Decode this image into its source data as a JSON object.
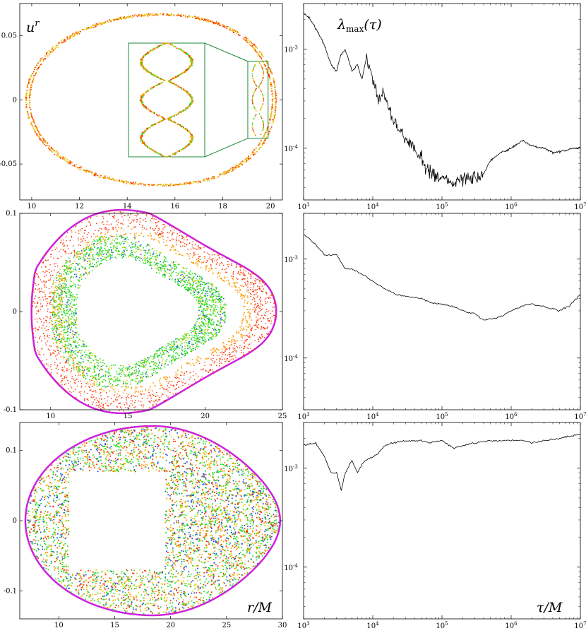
{
  "figure": {
    "ur_label": "u^r",
    "lambda_label": "λmax(τ)",
    "rm_label": "r/M",
    "taum_label": "τ/M"
  },
  "chart_data": [
    {
      "type": "scatter",
      "title": "",
      "xlabel": "",
      "ylabel": "u^r",
      "xlim": [
        9.5,
        20.5
      ],
      "ylim": [
        -0.078,
        0.075
      ],
      "xticks": [
        "10",
        "12",
        "14",
        "16",
        "18",
        "20"
      ],
      "yticks": [
        "0.05",
        "0",
        "-0.05"
      ],
      "inset": {
        "xlim": [
          19.05,
          19.9
        ],
        "ylim": [
          -0.03,
          0.03
        ]
      },
      "series": [
        {
          "color": "#ff3300",
          "x": [
            10.0,
            12.0,
            14.0,
            16.0,
            18.0,
            19.4,
            20.0
          ],
          "y": [
            0.0,
            0.063,
            0.068,
            0.068,
            0.061,
            0.0,
            -0.03
          ]
        },
        {
          "color": "#ffaa00",
          "x": [
            10.2,
            12.0,
            14.0,
            16.0,
            18.0,
            19.3
          ],
          "y": [
            0.0,
            0.061,
            0.066,
            0.066,
            0.059,
            0.0
          ]
        }
      ]
    },
    {
      "type": "line",
      "title": "",
      "xlabel": "",
      "ylabel": "λmax(τ)",
      "xscale": "log",
      "yscale": "log",
      "xlim": [
        1000,
        10000000
      ],
      "ylim": [
        3e-05,
        0.0029
      ],
      "xticks": [
        "10^3",
        "10^4",
        "10^5",
        "10^6",
        "10^7"
      ],
      "yticks": [
        "10^-3",
        "10^-4"
      ],
      "x": [
        1000,
        1200,
        1600,
        2000,
        2500,
        3000,
        3500,
        4000,
        5000,
        6000,
        7000,
        8000,
        10000,
        12000,
        14000,
        17000,
        20000,
        25000,
        30000,
        40000,
        50000,
        60000,
        80000,
        100000,
        150000,
        200000,
        300000,
        400000,
        500000,
        700000,
        1000000,
        1200000,
        1500000,
        2000000,
        3000000,
        4000000,
        6000000,
        8000000,
        10000000
      ],
      "y": [
        0.0023,
        0.0021,
        0.0015,
        0.0011,
        0.0007,
        0.0006,
        0.0009,
        0.001,
        0.0006,
        0.0007,
        0.0005,
        0.0008,
        0.0005,
        0.0003,
        0.0004,
        0.00025,
        0.0002,
        0.00015,
        0.00012,
        0.0001,
        8e-05,
        6e-05,
        5.5e-05,
        5e-05,
        4.5e-05,
        5e-05,
        5e-05,
        5.5e-05,
        7.5e-05,
        9e-05,
        0.0001,
        0.00011,
        0.00012,
        0.000105,
        0.0001,
        9e-05,
        9.5e-05,
        0.0001,
        0.0001
      ]
    },
    {
      "type": "scatter",
      "title": "",
      "xlabel": "",
      "ylabel": "",
      "xlim": [
        8,
        25
      ],
      "ylim": [
        -0.1,
        0.1
      ],
      "xticks": [
        "10",
        "15",
        "20",
        "25"
      ],
      "yticks": [
        "0.1",
        "0",
        "-0.1"
      ],
      "series": [
        {
          "color": "#cc22dd",
          "x": [
            9.0,
            10.0,
            14.0,
            18.0,
            20.0,
            22.0,
            25.0
          ],
          "y": [
            0.0,
            0.093,
            0.102,
            0.09,
            0.06,
            0.057,
            0.0
          ]
        },
        {
          "color": "#ff3300",
          "x": [
            8.5,
            10.0,
            15.0,
            20.0,
            23.0,
            24.5
          ],
          "y": [
            0.0,
            0.085,
            0.085,
            0.05,
            0.02,
            0.0
          ]
        },
        {
          "color": "#22dd22",
          "x": [
            9.5,
            11.0,
            15.0,
            19.0,
            21.0
          ],
          "y": [
            0.0,
            0.06,
            0.07,
            0.04,
            0.0
          ]
        }
      ]
    },
    {
      "type": "line",
      "title": "",
      "xlabel": "",
      "ylabel": "",
      "xscale": "log",
      "yscale": "log",
      "xlim": [
        1000,
        10000000
      ],
      "ylim": [
        3e-05,
        0.0029
      ],
      "xticks": [
        "10^3",
        "10^4",
        "10^5",
        "10^6",
        "10^7"
      ],
      "yticks": [
        "10^-3",
        "10^-4"
      ],
      "x": [
        1000,
        1500,
        2000,
        3000,
        4000,
        5000,
        7000,
        10000,
        15000,
        20000,
        30000,
        50000,
        70000,
        100000,
        150000,
        200000,
        300000,
        400000,
        500000,
        700000,
        1000000,
        1500000,
        2000000,
        3000000,
        5000000,
        7000000,
        10000000
      ],
      "y": [
        0.0018,
        0.0014,
        0.0011,
        0.0011,
        0.0008,
        0.0008,
        0.0007,
        0.0006,
        0.0005,
        0.00045,
        0.00042,
        0.0004,
        0.00036,
        0.00035,
        0.00033,
        0.0003,
        0.00028,
        0.00024,
        0.00025,
        0.00026,
        0.0003,
        0.00034,
        0.00035,
        0.00033,
        0.0003,
        0.00034,
        0.00044
      ]
    },
    {
      "type": "scatter",
      "title": "",
      "xlabel": "r/M",
      "ylabel": "",
      "xlim": [
        6.5,
        30
      ],
      "ylim": [
        -0.14,
        0.14
      ],
      "xticks": [
        "10",
        "15",
        "20",
        "25",
        "30"
      ],
      "yticks": [
        "0.1",
        "0",
        "-0.1"
      ],
      "series": [
        {
          "color": "#cc22dd",
          "x": [
            6.8,
            10.0,
            15.0,
            20.0,
            25.0,
            29.5,
            30.0
          ],
          "y": [
            0.0,
            0.133,
            0.135,
            0.125,
            0.11,
            0.03,
            0.0
          ]
        },
        {
          "color": "#22cc22",
          "x": [
            8.0,
            12.0,
            16.0,
            22.0,
            27.0
          ],
          "y": [
            0.05,
            -0.08,
            0.1,
            -0.05,
            0.06
          ]
        },
        {
          "color": "#ff3300",
          "x": [
            9.0,
            13.0,
            18.0,
            24.0,
            28.0
          ],
          "y": [
            -0.1,
            0.08,
            -0.11,
            0.09,
            -0.03
          ]
        }
      ]
    },
    {
      "type": "line",
      "title": "",
      "xlabel": "τ/M",
      "ylabel": "",
      "xscale": "log",
      "yscale": "log",
      "xlim": [
        1000,
        10000000
      ],
      "ylim": [
        3e-05,
        0.0029
      ],
      "xticks": [
        "10^3",
        "10^4",
        "10^5",
        "10^6",
        "10^7"
      ],
      "yticks": [
        "10^-3",
        "10^-4"
      ],
      "x": [
        1000,
        1500,
        2000,
        2500,
        3000,
        3500,
        4000,
        5000,
        6000,
        7000,
        8000,
        10000,
        12000,
        15000,
        20000,
        30000,
        50000,
        70000,
        100000,
        150000,
        200000,
        300000,
        500000,
        700000,
        1000000,
        1500000,
        2000000,
        3000000,
        5000000,
        7000000,
        10000000
      ],
      "y": [
        0.0017,
        0.0018,
        0.0013,
        0.0009,
        0.0009,
        0.0006,
        0.0009,
        0.0012,
        0.0009,
        0.0011,
        0.0012,
        0.0013,
        0.0014,
        0.0017,
        0.0018,
        0.0019,
        0.0019,
        0.0018,
        0.0019,
        0.0016,
        0.0017,
        0.0018,
        0.0019,
        0.0019,
        0.0019,
        0.0019,
        0.0018,
        0.0019,
        0.002,
        0.0021,
        0.0022
      ]
    }
  ]
}
